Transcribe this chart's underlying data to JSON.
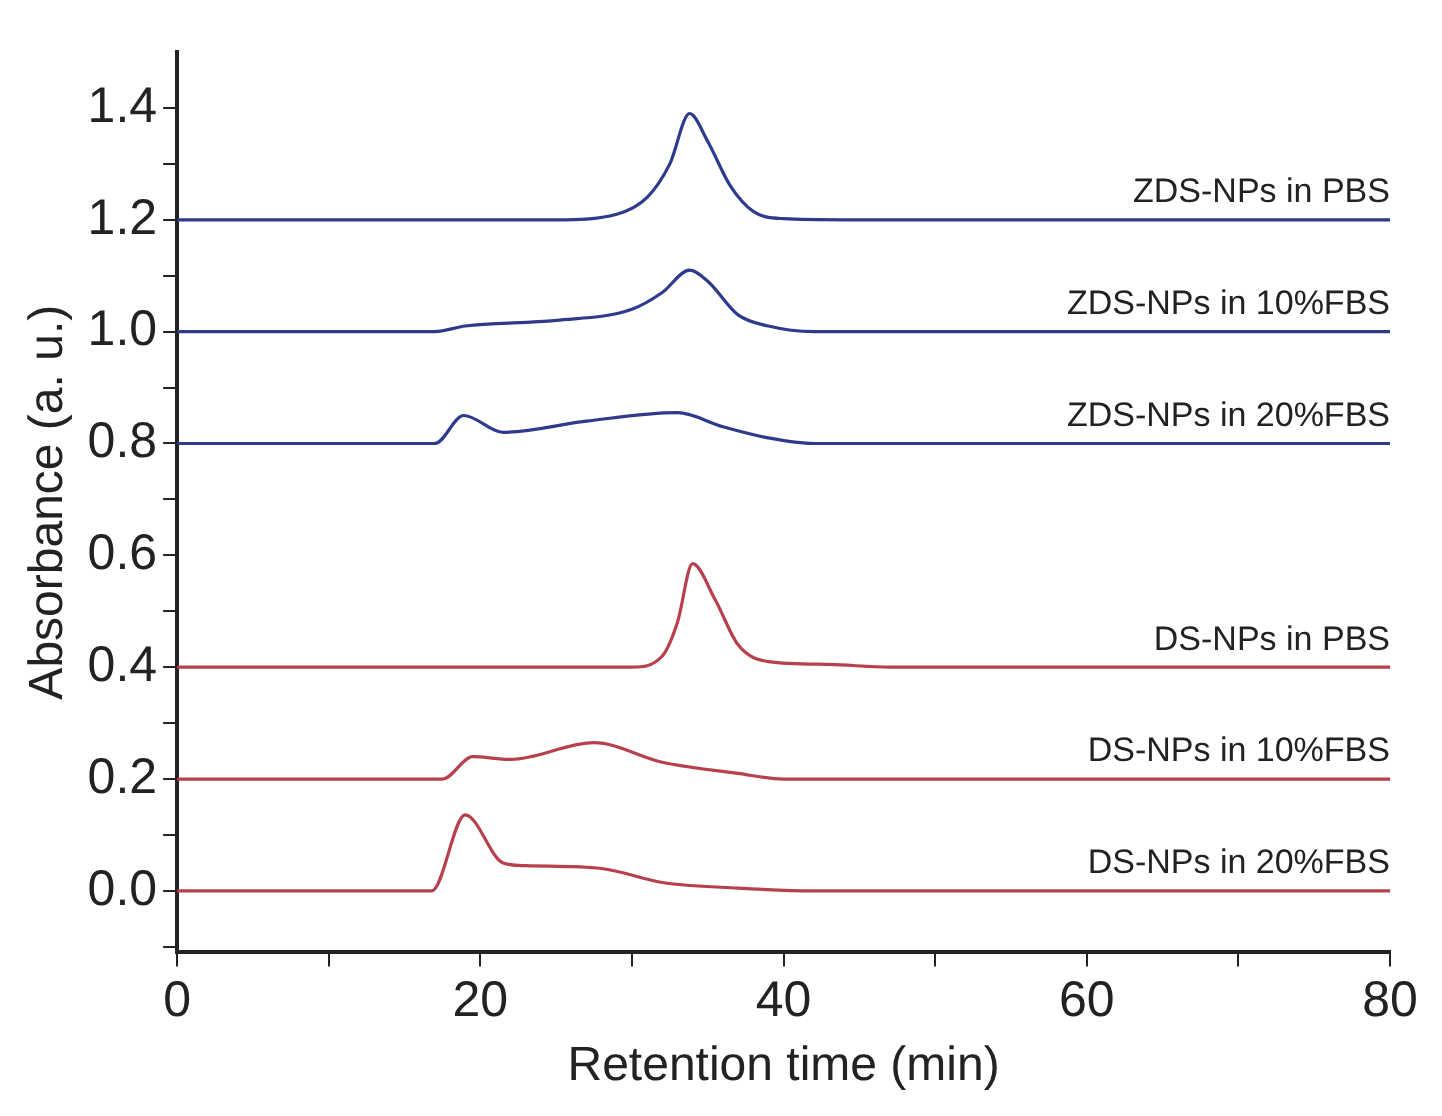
{
  "chart_data": {
    "type": "line",
    "xlabel": "Retention time (min)",
    "ylabel": "Absorbance (a. u.)",
    "xlim": [
      0,
      80
    ],
    "xticks": [
      0,
      {
        "value": 10,
        "label": null
      },
      20,
      {
        "value": 30,
        "label": null
      },
      40,
      {
        "value": 50,
        "label": null
      },
      60,
      {
        "value": 70,
        "label": null
      },
      80
    ],
    "ylim": [
      -0.11,
      1.5
    ],
    "yticks": [
      {
        "value": -0.1,
        "label": null
      },
      {
        "value": 0,
        "label": "0.0"
      },
      {
        "value": 0.1,
        "label": null
      },
      0.2,
      {
        "value": 0.3,
        "label": null
      },
      0.4,
      {
        "value": 0.5,
        "label": null
      },
      0.6,
      {
        "value": 0.7,
        "label": null
      },
      0.8,
      {
        "value": 0.9,
        "label": null
      },
      {
        "value": 1,
        "label": "1.0"
      },
      {
        "value": 1.1,
        "label": null
      },
      1.2,
      {
        "value": 1.3,
        "label": null
      },
      1.4
    ],
    "grid": false,
    "legend": false,
    "marker": "none",
    "line_style": "solid",
    "series": [
      {
        "name": "ZDS-NPs in PBS",
        "color": "#2e3a8c",
        "x": [
          0,
          25,
          29,
          31,
          32.5,
          33.8,
          35,
          36.5,
          38,
          40,
          44,
          80
        ],
        "values": [
          1.2,
          1.2,
          1.21,
          1.24,
          1.3,
          1.39,
          1.34,
          1.26,
          1.215,
          1.202,
          1.2,
          1.2
        ]
      },
      {
        "name": "ZDS-NPs in 10%FBS",
        "color": "#2e3a8c",
        "x": [
          0,
          17,
          19,
          25,
          30,
          32,
          33.8,
          35,
          37,
          39,
          42,
          80
        ],
        "values": [
          1.0,
          1.0,
          1.01,
          1.02,
          1.04,
          1.07,
          1.11,
          1.09,
          1.03,
          1.01,
          1.0,
          1.0
        ]
      },
      {
        "name": "ZDS-NPs in 20%FBS",
        "color": "#2e3a8c",
        "x": [
          0,
          17,
          18.9,
          21.5,
          27,
          33,
          36,
          39,
          42,
          80
        ],
        "values": [
          0.8,
          0.8,
          0.85,
          0.82,
          0.84,
          0.855,
          0.83,
          0.81,
          0.8,
          0.8
        ]
      },
      {
        "name": "DS-NPs in PBS",
        "color": "#b8404c",
        "x": [
          0,
          30,
          32,
          33,
          34,
          35.5,
          37,
          39,
          43,
          47,
          80
        ],
        "values": [
          0.4,
          0.4,
          0.42,
          0.48,
          0.585,
          0.52,
          0.44,
          0.41,
          0.405,
          0.4,
          0.4
        ]
      },
      {
        "name": "DS-NPs in 10%FBS",
        "color": "#b8404c",
        "x": [
          0,
          17.5,
          19.5,
          22,
          27.5,
          32,
          37,
          40,
          80
        ],
        "values": [
          0.2,
          0.2,
          0.24,
          0.235,
          0.265,
          0.23,
          0.21,
          0.2,
          0.2
        ]
      },
      {
        "name": "DS-NPs in 20%FBS",
        "color": "#b8404c",
        "x": [
          0,
          16.8,
          19,
          21.5,
          23,
          28,
          32,
          37,
          42,
          80
        ],
        "values": [
          0,
          0,
          0.136,
          0.05,
          0.045,
          0.04,
          0.015,
          0.005,
          0,
          0
        ]
      }
    ]
  }
}
